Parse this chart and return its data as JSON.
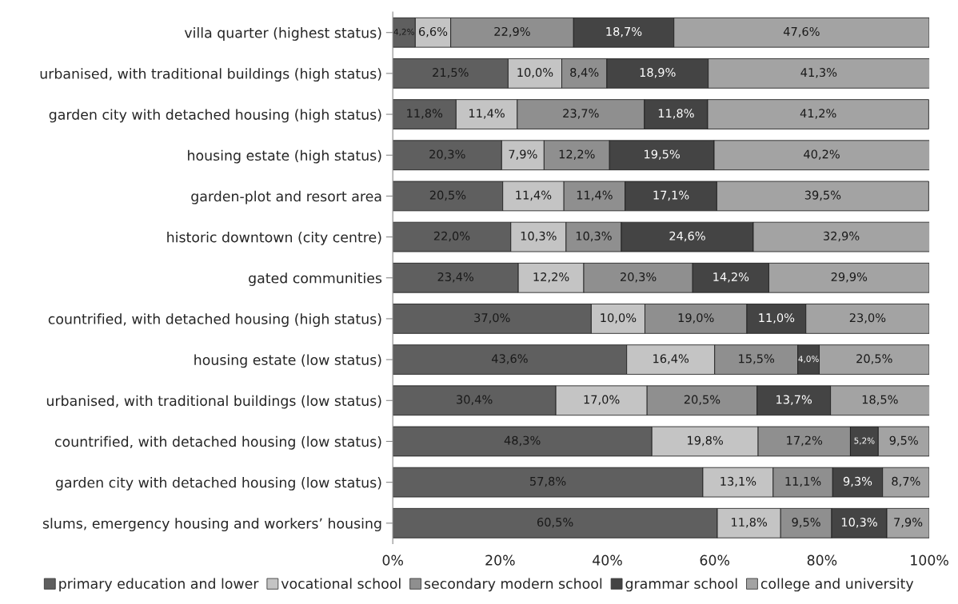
{
  "chart_data": {
    "type": "bar",
    "orientation": "horizontal",
    "stacked": true,
    "legend": "bottom",
    "grid": false,
    "categories": [
      "villa quarter (highest status)",
      "urbanised, with traditional buildings (high status)",
      "garden city with detached housing (high status)",
      "housing estate (high status)",
      "garden-plot and resort area",
      "historic downtown (city centre)",
      "gated communities",
      "countrified, with detached housing (high status)",
      "housing estate (low status)",
      "urbanised, with traditional buildings (low status)",
      "countrified, with detached housing (low status)",
      "garden city with detached housing (low status)",
      "slums, emergency housing and workers’ housing"
    ],
    "xlim": [
      0,
      100
    ],
    "xticks": [
      {
        "value": 0,
        "label": "0%"
      },
      {
        "value": 20,
        "label": "20%"
      },
      {
        "value": 40,
        "label": "40%"
      },
      {
        "value": 60,
        "label": "60%"
      },
      {
        "value": 80,
        "label": "80%"
      },
      {
        "value": 100,
        "label": "100%"
      }
    ],
    "series": [
      {
        "name": "primary education and lower",
        "color": "#5f5f5f",
        "values": [
          4.2,
          21.5,
          11.8,
          20.3,
          20.5,
          22.0,
          23.4,
          37.0,
          43.6,
          30.4,
          48.3,
          57.8,
          60.5
        ],
        "value_labels": [
          "4,2%",
          "21,5%",
          "11,8%",
          "20,3%",
          "20,5%",
          "22,0%",
          "23,4%",
          "37,0%",
          "43,6%",
          "30,4%",
          "48,3%",
          "57,8%",
          "60,5%"
        ]
      },
      {
        "name": "vocational school",
        "color": "#c4c4c4",
        "values": [
          6.6,
          10.0,
          11.4,
          7.9,
          11.4,
          10.3,
          12.2,
          10.0,
          16.4,
          17.0,
          19.8,
          13.1,
          11.8
        ],
        "value_labels": [
          "6,6%",
          "10,0%",
          "11,4%",
          "7,9%",
          "11,4%",
          "10,3%",
          "12,2%",
          "10,0%",
          "16,4%",
          "17,0%",
          "19,8%",
          "13,1%",
          "11,8%"
        ]
      },
      {
        "name": "secondary modern school",
        "color": "#8f8f8f",
        "values": [
          22.9,
          8.4,
          23.7,
          12.2,
          11.4,
          10.3,
          20.3,
          19.0,
          15.5,
          20.5,
          17.2,
          11.1,
          9.5
        ],
        "value_labels": [
          "22,9%",
          "8,4%",
          "23,7%",
          "12,2%",
          "11,4%",
          "10,3%",
          "20,3%",
          "19,0%",
          "15,5%",
          "20,5%",
          "17,2%",
          "11,1%",
          "9,5%"
        ]
      },
      {
        "name": "grammar school",
        "color": "#444444",
        "values": [
          18.7,
          18.9,
          11.8,
          19.5,
          17.1,
          24.6,
          14.2,
          11.0,
          4.0,
          13.7,
          5.2,
          9.3,
          10.3
        ],
        "value_labels": [
          "18,7%",
          "18,9%",
          "11,8%",
          "19,5%",
          "17,1%",
          "24,6%",
          "14,2%",
          "11,0%",
          "4,0%",
          "13,7%",
          "5,2%",
          "9,3%",
          "10,3%"
        ]
      },
      {
        "name": "college and university",
        "color": "#a3a3a3",
        "values": [
          47.6,
          41.3,
          41.2,
          40.2,
          39.5,
          32.9,
          29.9,
          23.0,
          20.5,
          18.5,
          9.5,
          8.7,
          7.9
        ],
        "value_labels": [
          "47,6%",
          "41,3%",
          "41,2%",
          "40,2%",
          "39,5%",
          "32,9%",
          "29,9%",
          "23,0%",
          "20,5%",
          "18,5%",
          "9,5%",
          "8,7%",
          "7,9%"
        ]
      }
    ]
  }
}
